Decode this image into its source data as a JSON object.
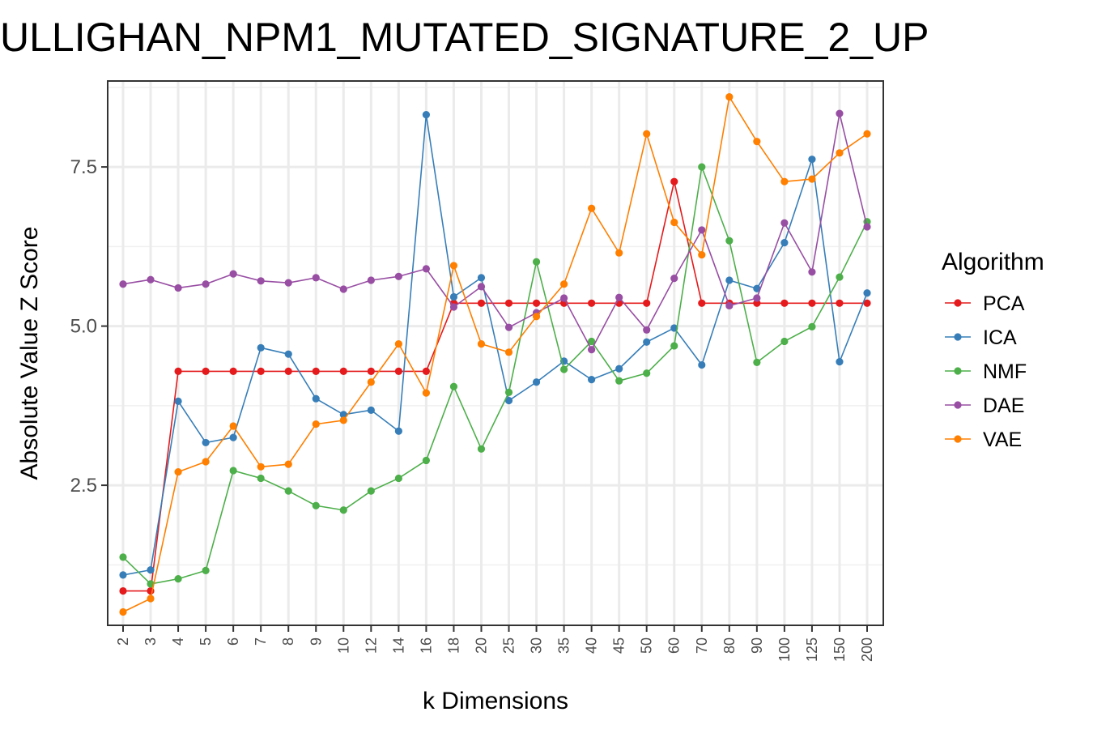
{
  "chart_data": {
    "type": "line",
    "title": "ULLIGHAN_NPM1_MUTATED_SIGNATURE_2_UP",
    "xlabel": "k Dimensions",
    "ylabel": "Absolute Value Z Score",
    "categories": [
      "2",
      "3",
      "4",
      "5",
      "6",
      "7",
      "8",
      "9",
      "10",
      "12",
      "14",
      "16",
      "18",
      "20",
      "25",
      "30",
      "35",
      "40",
      "45",
      "50",
      "60",
      "70",
      "80",
      "90",
      "100",
      "125",
      "150",
      "200"
    ],
    "ylim": [
      0.3,
      8.85
    ],
    "yticks": [
      2.5,
      5.0,
      7.5
    ],
    "ytick_labels": [
      "2.5",
      "5.0",
      "7.5"
    ],
    "grid": true,
    "legend": {
      "title": "Algorithm",
      "placement": "right"
    },
    "series": [
      {
        "name": "PCA",
        "color": "#E41A1C",
        "values": [
          0.84,
          0.84,
          4.29,
          4.29,
          4.29,
          4.29,
          4.29,
          4.29,
          4.29,
          4.29,
          4.29,
          4.29,
          5.36,
          5.36,
          5.36,
          5.36,
          5.36,
          5.36,
          5.36,
          5.36,
          7.27,
          5.36,
          5.36,
          5.36,
          5.36,
          5.36,
          5.36,
          5.36
        ]
      },
      {
        "name": "ICA",
        "color": "#377EB8",
        "values": [
          1.09,
          1.17,
          3.82,
          3.17,
          3.25,
          4.66,
          4.56,
          3.86,
          3.61,
          3.68,
          3.35,
          8.32,
          5.46,
          5.76,
          3.83,
          4.12,
          4.45,
          4.16,
          4.33,
          4.75,
          4.97,
          4.39,
          5.72,
          5.59,
          6.31,
          7.62,
          4.44,
          5.52
        ]
      },
      {
        "name": "NMF",
        "color": "#4DAF4A",
        "values": [
          1.37,
          0.95,
          1.03,
          1.16,
          2.73,
          2.61,
          2.41,
          2.18,
          2.11,
          2.41,
          2.61,
          2.89,
          4.05,
          3.07,
          3.96,
          6.01,
          4.32,
          4.76,
          4.14,
          4.26,
          4.69,
          7.5,
          6.34,
          4.43,
          4.76,
          4.99,
          5.77,
          6.64
        ]
      },
      {
        "name": "DAE",
        "color": "#984EA3",
        "values": [
          5.66,
          5.73,
          5.6,
          5.66,
          5.82,
          5.71,
          5.68,
          5.76,
          5.58,
          5.72,
          5.78,
          5.9,
          5.3,
          5.62,
          4.98,
          5.21,
          5.44,
          4.63,
          5.45,
          4.94,
          5.75,
          6.51,
          5.32,
          5.44,
          6.62,
          5.85,
          8.34,
          6.56
        ]
      },
      {
        "name": "VAE",
        "color": "#FF7F00",
        "values": [
          0.51,
          0.72,
          2.71,
          2.87,
          3.43,
          2.79,
          2.83,
          3.46,
          3.52,
          4.12,
          4.72,
          3.95,
          5.95,
          4.72,
          4.59,
          5.15,
          5.66,
          6.85,
          6.15,
          8.02,
          6.63,
          6.12,
          8.6,
          7.9,
          7.27,
          7.31,
          7.72,
          8.02
        ]
      }
    ]
  }
}
